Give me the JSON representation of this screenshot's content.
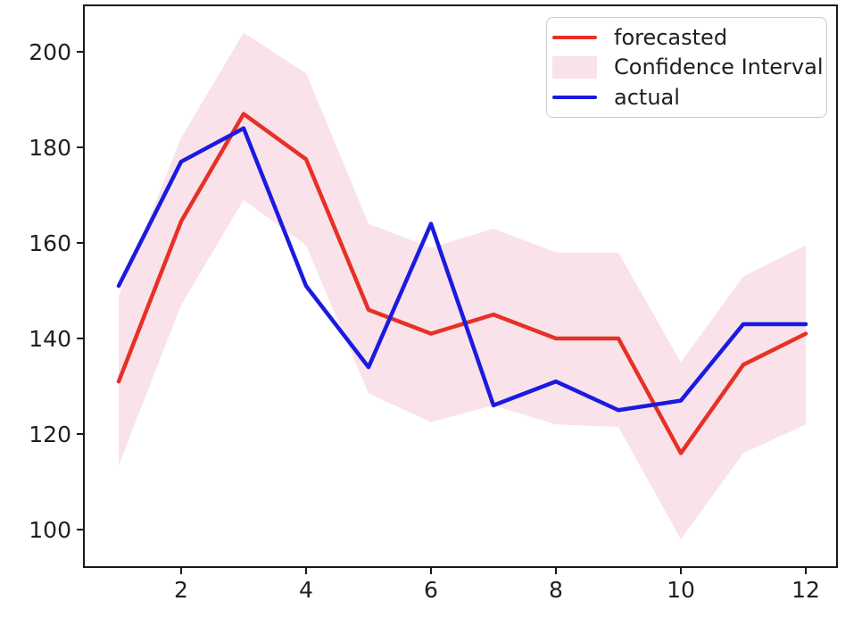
{
  "chart_data": {
    "type": "line",
    "title": "",
    "xlabel": "",
    "ylabel": "",
    "x": [
      1,
      2,
      3,
      4,
      5,
      6,
      7,
      8,
      9,
      10,
      11,
      12
    ],
    "x_ticks": [
      2,
      4,
      6,
      8,
      10,
      12
    ],
    "y_ticks": [
      100,
      120,
      140,
      160,
      180,
      200
    ],
    "xlim": [
      0.45,
      12.5
    ],
    "ylim": [
      92.3,
      209.3
    ],
    "grid": false,
    "series": [
      {
        "name": "forecasted",
        "color": "#e63127",
        "values": [
          131,
          164.5,
          187,
          177.5,
          146,
          141,
          145,
          140,
          140,
          116,
          134.5,
          141
        ]
      },
      {
        "name": "actual",
        "color": "#1a1ae0",
        "values": [
          151,
          177,
          184,
          151,
          134,
          164,
          126,
          131,
          125,
          127,
          143,
          143
        ]
      }
    ],
    "confidence_interval": {
      "name": "Confidence Interval",
      "fill_color": "#f9e2e9",
      "upper": [
        149,
        182,
        204,
        195.5,
        164,
        159,
        163,
        158,
        158,
        135,
        153,
        159.5
      ],
      "lower": [
        113.5,
        147,
        169,
        159.5,
        128.5,
        122.5,
        126,
        122,
        121.5,
        98,
        116,
        122
      ]
    },
    "legend": {
      "position": "upper right",
      "entries": [
        "forecasted",
        "Confidence Interval",
        "actual"
      ]
    }
  },
  "colors": {
    "frame": "#1a1a1a",
    "text": "#1f1f1f",
    "background": "#ffffff",
    "legend_border": "#cccccc"
  }
}
